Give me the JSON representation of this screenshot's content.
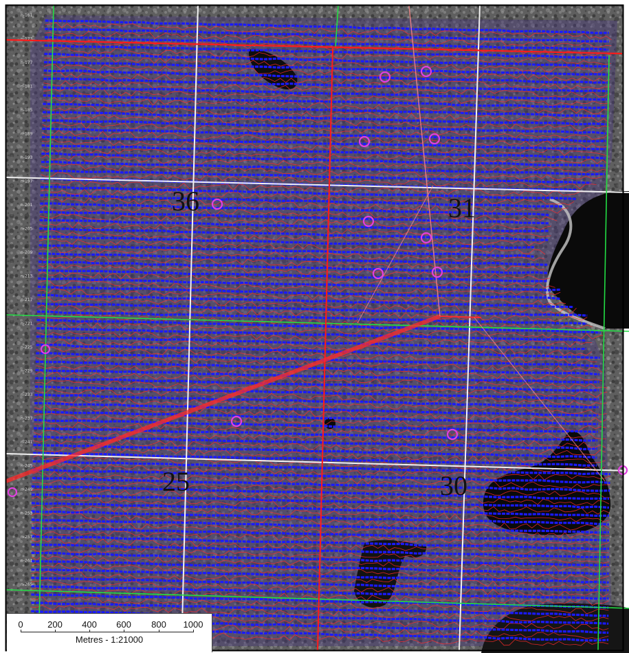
{
  "map": {
    "section_labels": [
      "36",
      "31",
      "25",
      "30"
    ],
    "line_labels": [
      "n-161",
      "n-173",
      "n-177",
      "n-181",
      "n-185",
      "n-189",
      "n-193",
      "n-197",
      "n-201",
      "n-205",
      "n-209",
      "n-213",
      "n-217",
      "n-221",
      "n-225",
      "n-229",
      "n-233",
      "n-237",
      "n-241",
      "n-245",
      "n-249",
      "n-253",
      "n-257",
      "n-261",
      "n-265",
      "n-269"
    ],
    "colors": {
      "flight_lines": "#1a1aff",
      "contours": "#ff2a2a",
      "anomaly_markers": "#e040e0",
      "claim_boundaries": "#ff1a1a",
      "grid_white": "#f0f0f0",
      "grid_green": "#22dd44",
      "water": "#0a0a0a"
    }
  },
  "scale_bar": {
    "ticks": [
      "0",
      "200",
      "400",
      "600",
      "800",
      "1000"
    ],
    "caption": "Metres - 1:21000"
  }
}
